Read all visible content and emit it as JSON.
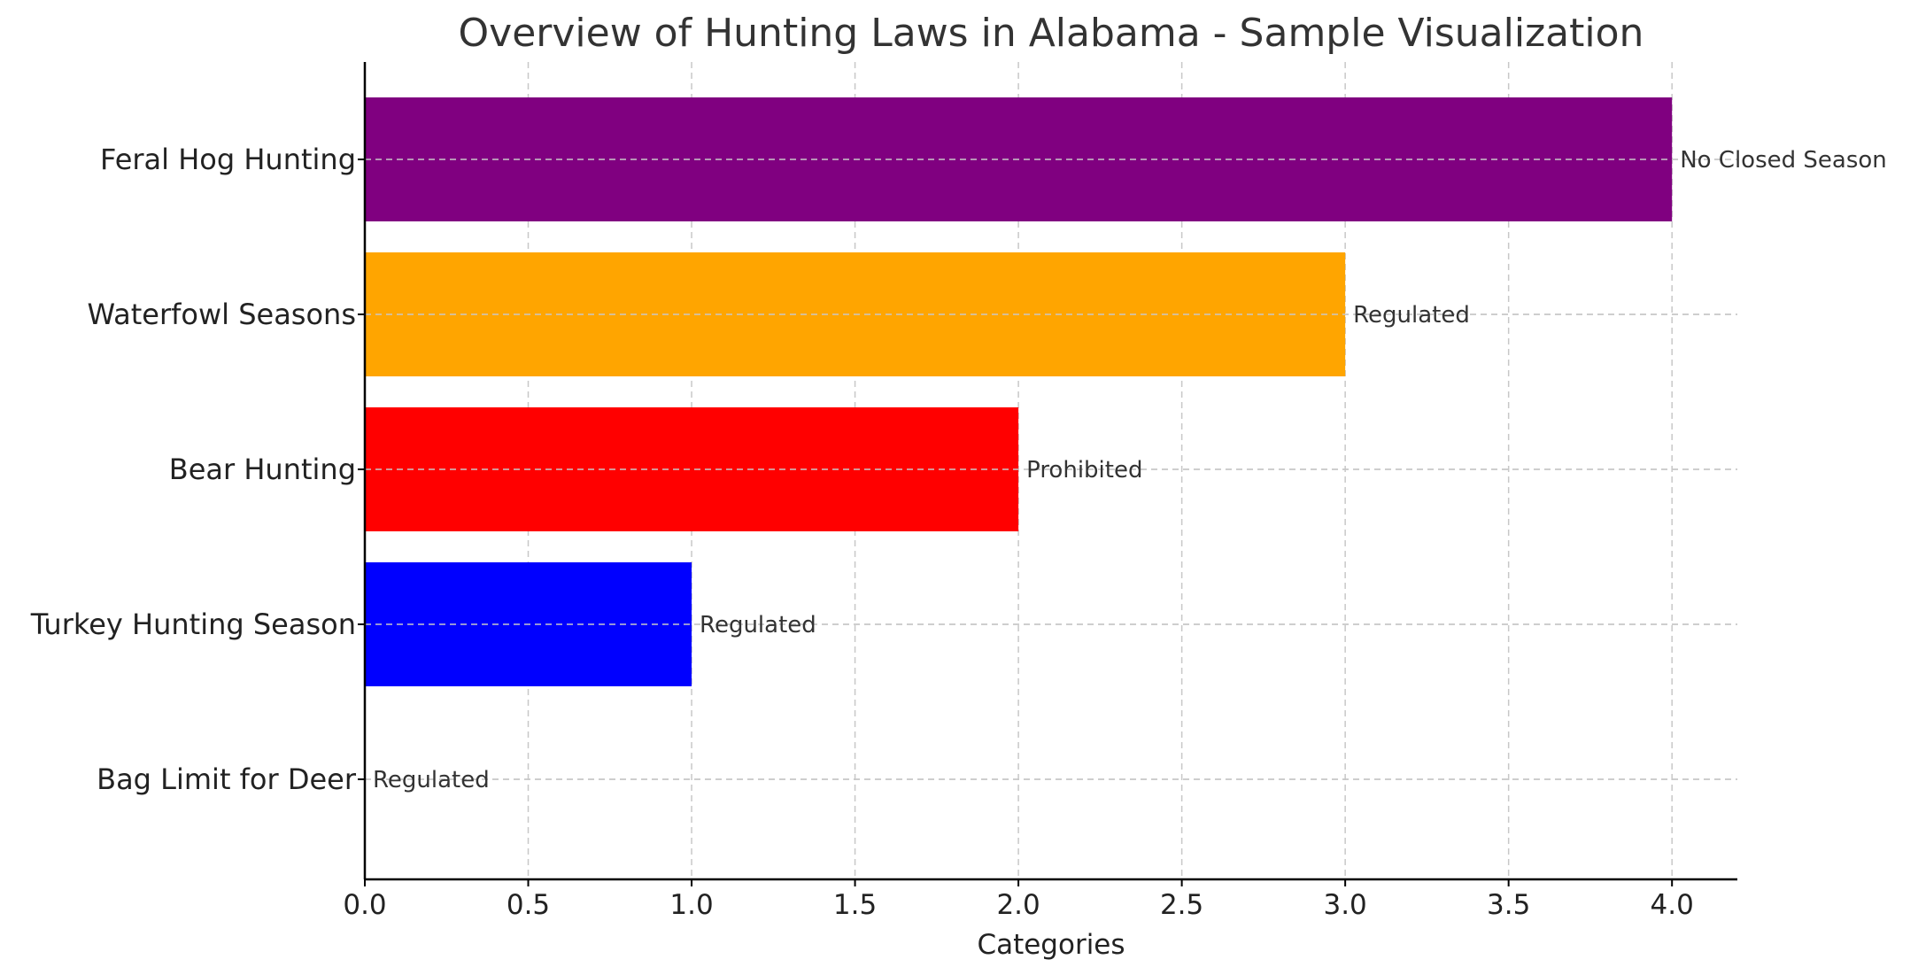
{
  "chart_data": {
    "type": "bar",
    "orientation": "horizontal",
    "title": "Overview of Hunting Laws in Alabama - Sample Visualization",
    "xlabel": "Categories",
    "ylabel": "",
    "xlim": [
      0,
      4.2
    ],
    "x_ticks": [
      "0.0",
      "0.5",
      "1.0",
      "1.5",
      "2.0",
      "2.5",
      "3.0",
      "3.5",
      "4.0"
    ],
    "x_tick_values": [
      0,
      0.5,
      1.0,
      1.5,
      2.0,
      2.5,
      3.0,
      3.5,
      4.0
    ],
    "grid": true,
    "categories": [
      "Bag Limit for Deer",
      "Turkey Hunting Season",
      "Bear Hunting",
      "Waterfowl Seasons",
      "Feral Hog Hunting"
    ],
    "values": [
      0,
      1,
      2,
      3,
      4
    ],
    "bar_labels": [
      "Regulated",
      "Regulated",
      "Prohibited",
      "Regulated",
      "No Closed Season"
    ],
    "colors": [
      "#008000",
      "#0000ff",
      "#ff0000",
      "#ffa500",
      "#800080"
    ]
  }
}
